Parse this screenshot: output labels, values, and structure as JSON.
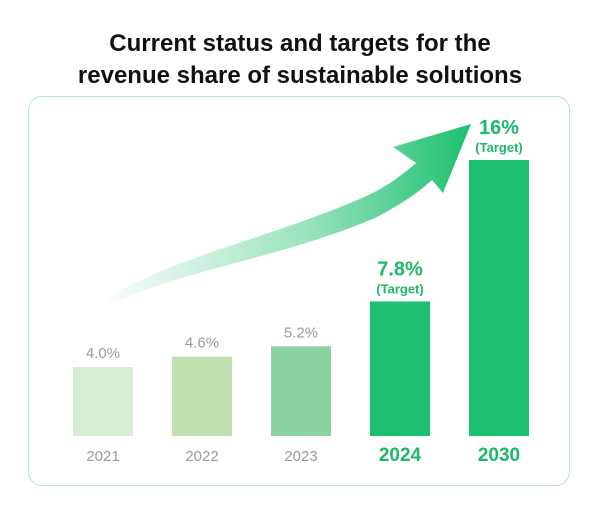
{
  "title": "Current status and targets for the\nrevenue share of sustainable solutions",
  "chart_data": {
    "type": "bar",
    "categories": [
      "2021",
      "2022",
      "2023",
      "2024",
      "2030"
    ],
    "values": [
      4.0,
      4.6,
      5.2,
      7.8,
      16
    ],
    "value_labels": [
      "4.0%",
      "4.6%",
      "5.2%",
      "7.8%",
      "16%"
    ],
    "target_labels": [
      "",
      "",
      "",
      "(Target)",
      "(Target)"
    ],
    "ylim": [
      0,
      16
    ],
    "grid": false,
    "bar_colors": [
      "#d6ecd3",
      "#bfe1b2",
      "#8bd3a1",
      "#1dc06e",
      "#1dc06e"
    ],
    "label_colors": [
      "#9a9a9a",
      "#9a9a9a",
      "#9a9a9a",
      "#1db86a",
      "#1db86a"
    ],
    "highlight": [
      false,
      false,
      false,
      true,
      true
    ],
    "frame_border_color": "#b6e6c6",
    "arrow_color": "#1dc06e"
  }
}
